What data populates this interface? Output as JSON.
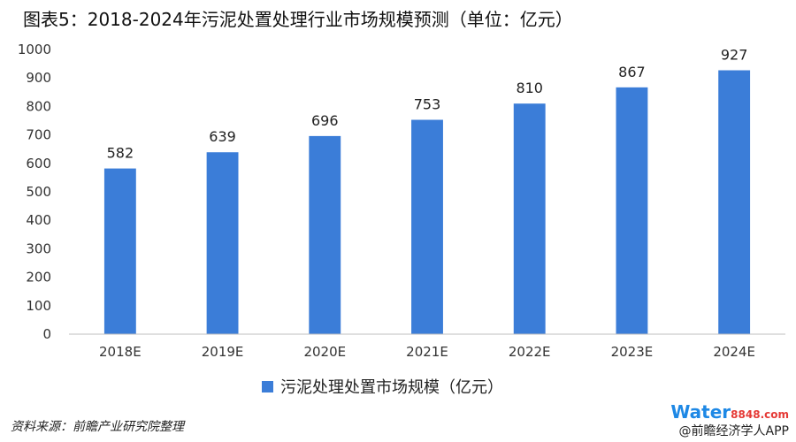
{
  "page_title": "图表5：2018-2024年污泥处置处理行业市场规模预测（单位：亿元）",
  "source": "资料来源：前瞻产业研究院整理",
  "footer": {
    "logo_word": "Water",
    "logo_num": "8848",
    "logo_suffix": ".com",
    "line": "@前瞻经济学人APP"
  },
  "colors": {
    "bar": "#3b7dd8",
    "axis": "#bfbfbf",
    "text": "#333333"
  },
  "chart_data": {
    "type": "bar",
    "title": "",
    "categories": [
      "2018E",
      "2019E",
      "2020E",
      "2021E",
      "2022E",
      "2023E",
      "2024E"
    ],
    "series": [
      {
        "name": "污泥处理处置市场规模（亿元）",
        "values": [
          582,
          639,
          696,
          753,
          810,
          867,
          927
        ]
      }
    ],
    "ylim": [
      0,
      1000
    ],
    "yticks": [
      0,
      100,
      200,
      300,
      400,
      500,
      600,
      700,
      800,
      900,
      1000
    ],
    "grid": false,
    "legend": "bottom"
  }
}
